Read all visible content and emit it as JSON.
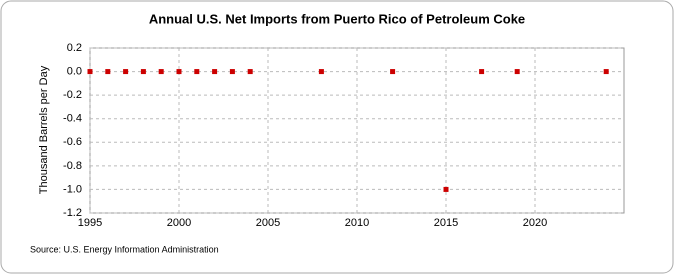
{
  "chart_data": {
    "type": "scatter",
    "title": "Annual U.S. Net Imports from Puerto Rico of Petroleum Coke",
    "y_label": "Thousand Barrels per Day",
    "source": "Source: U.S. Energy Information Administration",
    "series": [
      {
        "color": "#cc0000",
        "x": [
          1995,
          1996,
          1997,
          1998,
          1999,
          2000,
          2001,
          2002,
          2003,
          2004,
          2008,
          2012,
          2015,
          2017,
          2019,
          2024
        ],
        "values": [
          0,
          0,
          0,
          0,
          0,
          0,
          0,
          0,
          0,
          0,
          0,
          0,
          -1,
          0,
          0,
          0
        ]
      }
    ],
    "xlim": [
      1995,
      2025
    ],
    "xticks": [
      1995,
      2000,
      2005,
      2010,
      2015,
      2020
    ],
    "ylim": [
      -1.2,
      0.2
    ],
    "yticks": [
      0.2,
      {
        "value": 0,
        "label": "0.0"
      },
      -0.2,
      -0.4,
      -0.6,
      -0.8,
      {
        "value": -1,
        "label": "-1.0"
      },
      -1.2
    ],
    "grid": true
  }
}
